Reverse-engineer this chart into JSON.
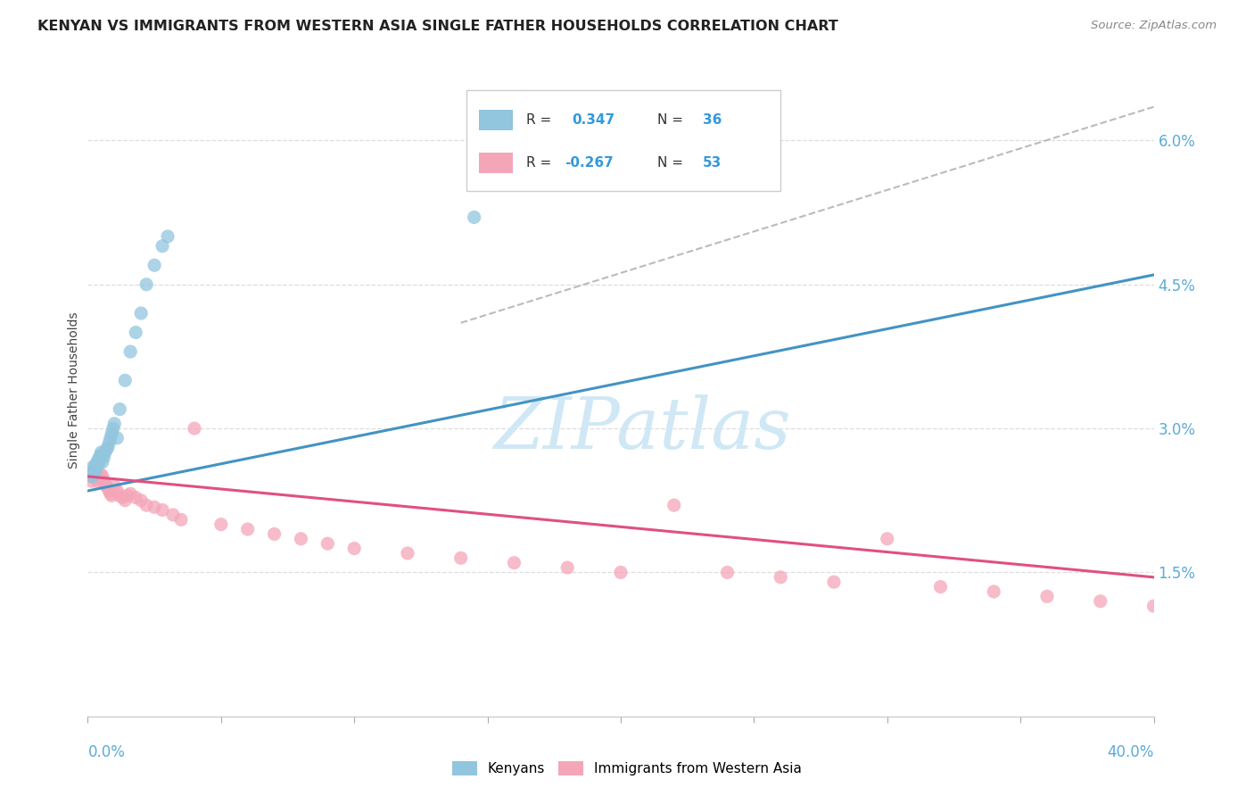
{
  "title": "KENYAN VS IMMIGRANTS FROM WESTERN ASIA SINGLE FATHER HOUSEHOLDS CORRELATION CHART",
  "source": "Source: ZipAtlas.com",
  "ylabel": "Single Father Households",
  "blue_color": "#92c5de",
  "pink_color": "#f4a6b8",
  "blue_line_color": "#4393c3",
  "pink_line_color": "#e05080",
  "dash_color": "#bbbbbb",
  "watermark_color": "#d0e8f5",
  "blue_r": 0.347,
  "blue_n": 36,
  "pink_r": -0.267,
  "pink_n": 53,
  "xmin": 0.0,
  "xmax": 40.0,
  "ymin": 0.0,
  "ymax": 6.8,
  "yticks": [
    0.0,
    1.5,
    3.0,
    4.5,
    6.0
  ],
  "ytick_labels": [
    "",
    "1.5%",
    "3.0%",
    "4.5%",
    "6.0%"
  ],
  "blue_scatter_x": [
    0.15,
    0.18,
    0.2,
    0.22,
    0.25,
    0.28,
    0.3,
    0.32,
    0.35,
    0.38,
    0.4,
    0.42,
    0.45,
    0.48,
    0.5,
    0.55,
    0.6,
    0.65,
    0.7,
    0.75,
    0.8,
    0.85,
    0.9,
    0.95,
    1.0,
    1.1,
    1.2,
    1.4,
    1.6,
    1.8,
    2.0,
    2.2,
    2.5,
    2.8,
    3.0,
    14.5
  ],
  "blue_scatter_y": [
    2.55,
    2.5,
    2.6,
    2.52,
    2.58,
    2.55,
    2.62,
    2.6,
    2.65,
    2.62,
    2.68,
    2.65,
    2.7,
    2.72,
    2.75,
    2.65,
    2.7,
    2.75,
    2.78,
    2.8,
    2.85,
    2.9,
    2.95,
    3.0,
    3.05,
    2.9,
    3.2,
    3.5,
    3.8,
    4.0,
    4.2,
    4.5,
    4.7,
    4.9,
    5.0,
    5.2
  ],
  "pink_scatter_x": [
    0.1,
    0.15,
    0.2,
    0.25,
    0.3,
    0.35,
    0.4,
    0.45,
    0.5,
    0.55,
    0.6,
    0.65,
    0.7,
    0.75,
    0.8,
    0.85,
    0.9,
    1.0,
    1.1,
    1.2,
    1.3,
    1.4,
    1.5,
    1.6,
    1.8,
    2.0,
    2.2,
    2.5,
    2.8,
    3.2,
    3.5,
    4.0,
    5.0,
    6.0,
    7.0,
    8.0,
    9.0,
    10.0,
    12.0,
    14.0,
    16.0,
    18.0,
    20.0,
    22.0,
    24.0,
    26.0,
    28.0,
    30.0,
    32.0,
    34.0,
    36.0,
    38.0,
    40.0
  ],
  "pink_scatter_y": [
    2.5,
    2.45,
    2.5,
    2.55,
    2.48,
    2.45,
    2.5,
    2.48,
    2.52,
    2.5,
    2.45,
    2.42,
    2.4,
    2.38,
    2.35,
    2.32,
    2.3,
    2.4,
    2.35,
    2.3,
    2.28,
    2.25,
    2.3,
    2.32,
    2.28,
    2.25,
    2.2,
    2.18,
    2.15,
    2.1,
    2.05,
    3.0,
    2.0,
    1.95,
    1.9,
    1.85,
    1.8,
    1.75,
    1.7,
    1.65,
    1.6,
    1.55,
    1.5,
    2.2,
    1.5,
    1.45,
    1.4,
    1.85,
    1.35,
    1.3,
    1.25,
    1.2,
    1.15
  ],
  "blue_line_x0": 0.0,
  "blue_line_x1": 40.0,
  "blue_line_y0": 2.35,
  "blue_line_y1": 4.6,
  "dash_line_x0": 14.0,
  "dash_line_x1": 40.0,
  "dash_line_y0": 4.1,
  "dash_line_y1": 6.35,
  "pink_line_x0": 0.0,
  "pink_line_x1": 40.0,
  "pink_line_y0": 2.5,
  "pink_line_y1": 1.45
}
